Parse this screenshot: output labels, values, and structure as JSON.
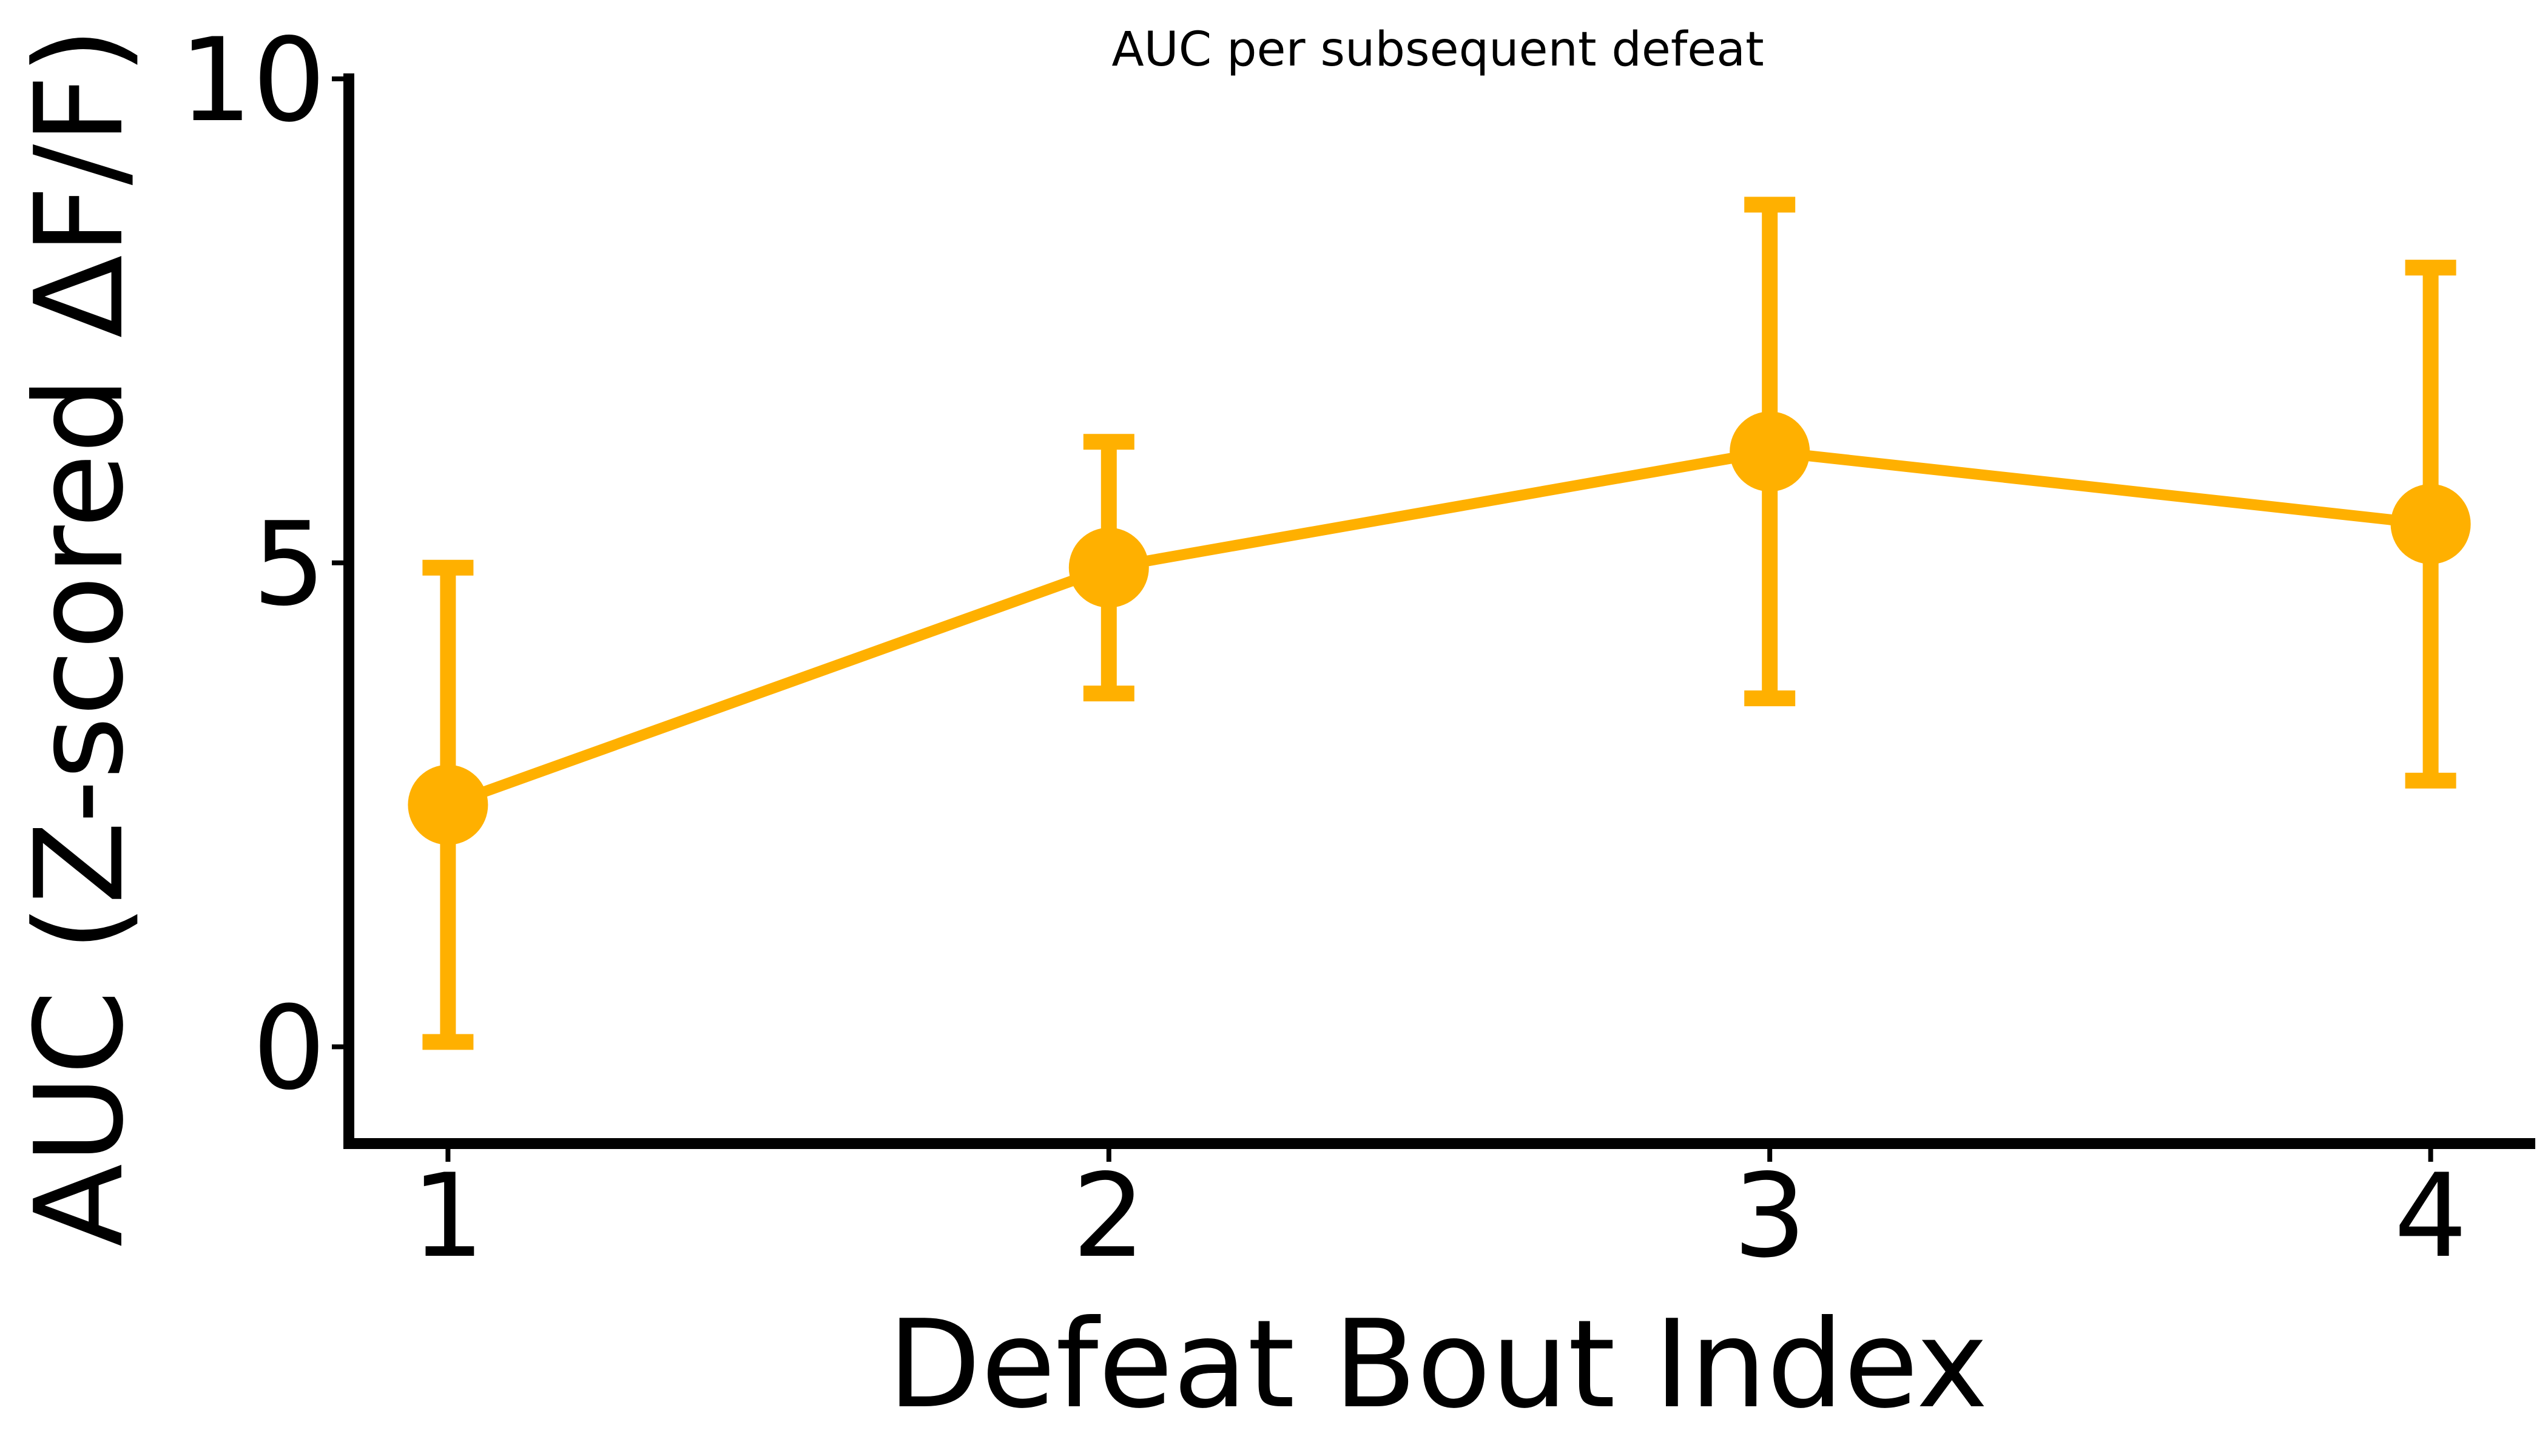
{
  "chart_data": {
    "type": "line",
    "title": "AUC per subsequent defeat",
    "xlabel": "Defeat Bout Index",
    "ylabel": "AUC (Z-scored ΔF/F)",
    "x": [
      1,
      2,
      3,
      4
    ],
    "xticks": [
      "1",
      "2",
      "3",
      "4"
    ],
    "yticks": [
      "0",
      "5",
      "10"
    ],
    "ytick_values": [
      0,
      5,
      10
    ],
    "xlim": [
      0.85,
      4.15
    ],
    "ylim": [
      -1.0,
      10.0
    ],
    "series": [
      {
        "values": [
          2.5,
          4.95,
          6.15,
          5.4
        ],
        "err_low": [
          0.05,
          3.65,
          3.6,
          2.75
        ],
        "err_high": [
          4.95,
          6.25,
          8.7,
          8.05
        ],
        "color": "#FFB000"
      }
    ],
    "grid": false,
    "legend": "none"
  }
}
